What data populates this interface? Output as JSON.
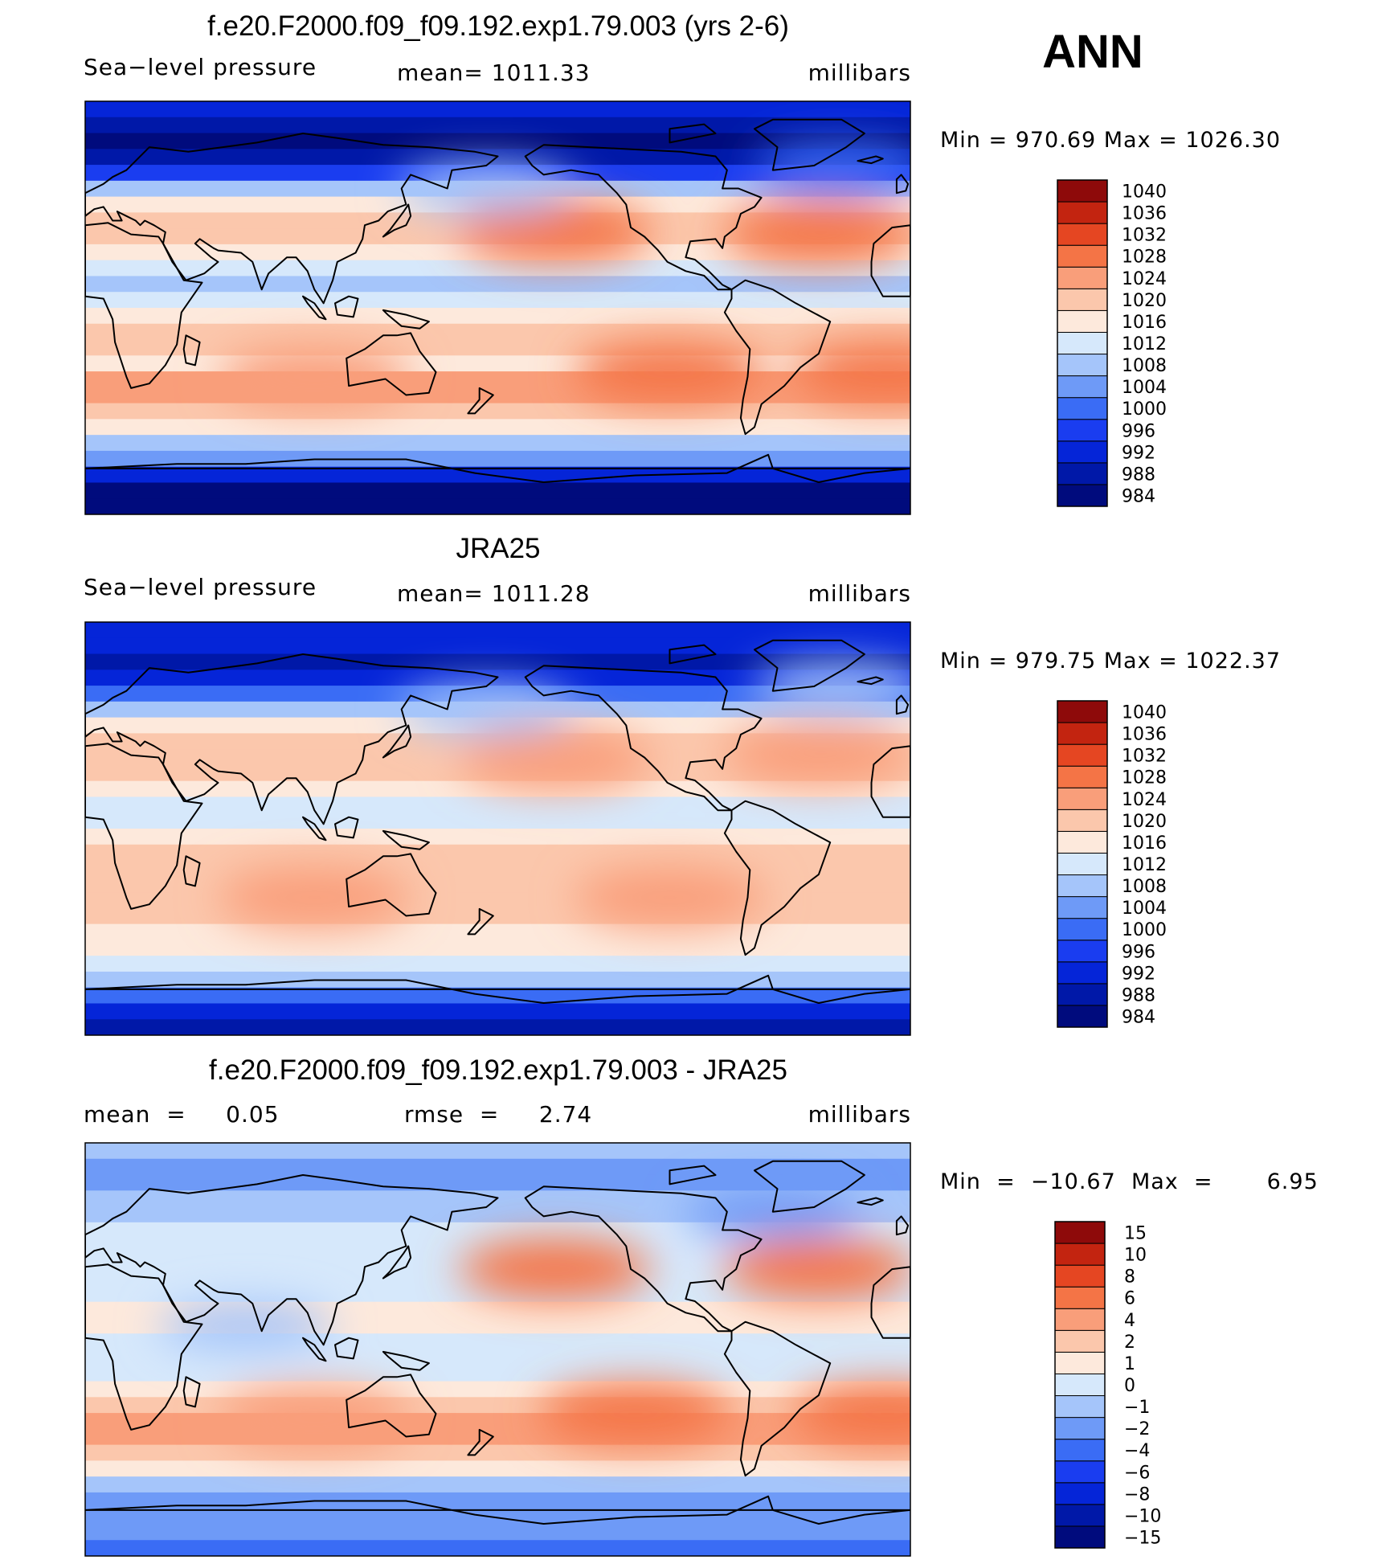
{
  "season_label": "ANN",
  "colors": {
    "abs_scale": [
      "#000b7d",
      "#0018a8",
      "#0525d8",
      "#1a3df0",
      "#3a6cf5",
      "#6e9af7",
      "#a5c5fa",
      "#d6e8fb",
      "#fde9dc",
      "#fbc7ac",
      "#f99e7a",
      "#f47446",
      "#e54622",
      "#c32410",
      "#8e0a0a"
    ],
    "diff_scale": [
      "#000b7d",
      "#0018a8",
      "#0525d8",
      "#1a3df0",
      "#3a6cf5",
      "#6e9af7",
      "#a5c5fa",
      "#d6e8fb",
      "#fde9dc",
      "#fbc7ac",
      "#f99e7a",
      "#f47446",
      "#e54622",
      "#c32410",
      "#8e0a0a"
    ]
  },
  "chart_data": [
    {
      "type": "heatmap",
      "title": "f.e20.F2000.f09_f09.192.exp1.79.003 (yrs 2-6)",
      "left_label": "Sea−level pressure",
      "mean_text": "mean=  1011.33",
      "units": "millibars",
      "minmax_text": "Min  =  970.69  Max  =  1026.30",
      "min": 970.69,
      "max": 1026.3,
      "colorbar_levels": [
        "984",
        "988",
        "992",
        "996",
        "1000",
        "1004",
        "1008",
        "1012",
        "1016",
        "1020",
        "1024",
        "1028",
        "1032",
        "1036",
        "1040"
      ],
      "zonal_profile_levels": [
        2,
        1,
        0,
        1,
        3,
        6,
        8,
        9,
        9,
        8,
        7,
        6,
        7,
        8,
        9,
        9,
        8,
        10,
        10,
        9,
        8,
        6,
        5,
        2,
        0,
        0
      ],
      "subtropical_highs": [
        {
          "lon": 205,
          "lat": 33,
          "level": 11
        },
        {
          "lon": 320,
          "lat": 32,
          "level": 11
        },
        {
          "lon": 100,
          "lat": -30,
          "level": 10
        },
        {
          "lon": 255,
          "lat": -28,
          "level": 11
        },
        {
          "lon": 350,
          "lat": -28,
          "level": 11
        }
      ],
      "lows": [
        {
          "lon": 175,
          "lat": 52,
          "level": 6
        },
        {
          "lon": 330,
          "lat": 62,
          "level": 4
        }
      ]
    },
    {
      "type": "heatmap",
      "title": "JRA25",
      "left_label": "Sea−level pressure",
      "mean_text": "mean=  1011.28",
      "units": "millibars",
      "minmax_text": "Min  =  979.75  Max  =  1022.37",
      "min": 979.75,
      "max": 1022.37,
      "colorbar_levels": [
        "984",
        "988",
        "992",
        "996",
        "1000",
        "1004",
        "1008",
        "1012",
        "1016",
        "1020",
        "1024",
        "1028",
        "1032",
        "1036",
        "1040"
      ],
      "zonal_profile_levels": [
        2,
        2,
        1,
        2,
        4,
        6,
        8,
        9,
        9,
        9,
        8,
        7,
        7,
        8,
        9,
        9,
        9,
        9,
        9,
        8,
        8,
        7,
        6,
        4,
        2,
        1
      ],
      "subtropical_highs": [
        {
          "lon": 205,
          "lat": 30,
          "level": 10
        },
        {
          "lon": 320,
          "lat": 32,
          "level": 10
        },
        {
          "lon": 100,
          "lat": -30,
          "level": 10
        },
        {
          "lon": 255,
          "lat": -30,
          "level": 10
        }
      ],
      "lows": [
        {
          "lon": 175,
          "lat": 52,
          "level": 6
        },
        {
          "lon": 330,
          "lat": 62,
          "level": 6
        }
      ]
    },
    {
      "type": "heatmap",
      "title": "f.e20.F2000.f09_f09.192.exp1.79.003 - JRA25",
      "left_label": "mean  =     0.05",
      "mean_text": "rmse  =     2.74",
      "units": "millibars",
      "minmax_text": "Min  =  −10.67  Max  =       6.95",
      "min": -10.67,
      "max": 6.95,
      "colorbar_levels": [
        "−15",
        "−10",
        "−8",
        "−6",
        "−4",
        "−2",
        "−1",
        "0",
        "1",
        "2",
        "4",
        "6",
        "8",
        "10",
        "15"
      ],
      "zonal_profile_levels": [
        6,
        5,
        5,
        6,
        6,
        7,
        7,
        7,
        7,
        7,
        8,
        8,
        7,
        7,
        7,
        8,
        9,
        10,
        10,
        9,
        8,
        6,
        5,
        5,
        5,
        4
      ],
      "subtropical_highs": [
        {
          "lon": 205,
          "lat": 35,
          "level": 11
        },
        {
          "lon": 320,
          "lat": 35,
          "level": 11
        },
        {
          "lon": 100,
          "lat": -30,
          "level": 10
        },
        {
          "lon": 240,
          "lat": -28,
          "level": 11
        },
        {
          "lon": 350,
          "lat": -28,
          "level": 11
        }
      ],
      "lows": [
        {
          "lon": 70,
          "lat": 10,
          "level": 6
        },
        {
          "lon": 300,
          "lat": 60,
          "level": 5
        }
      ]
    }
  ]
}
